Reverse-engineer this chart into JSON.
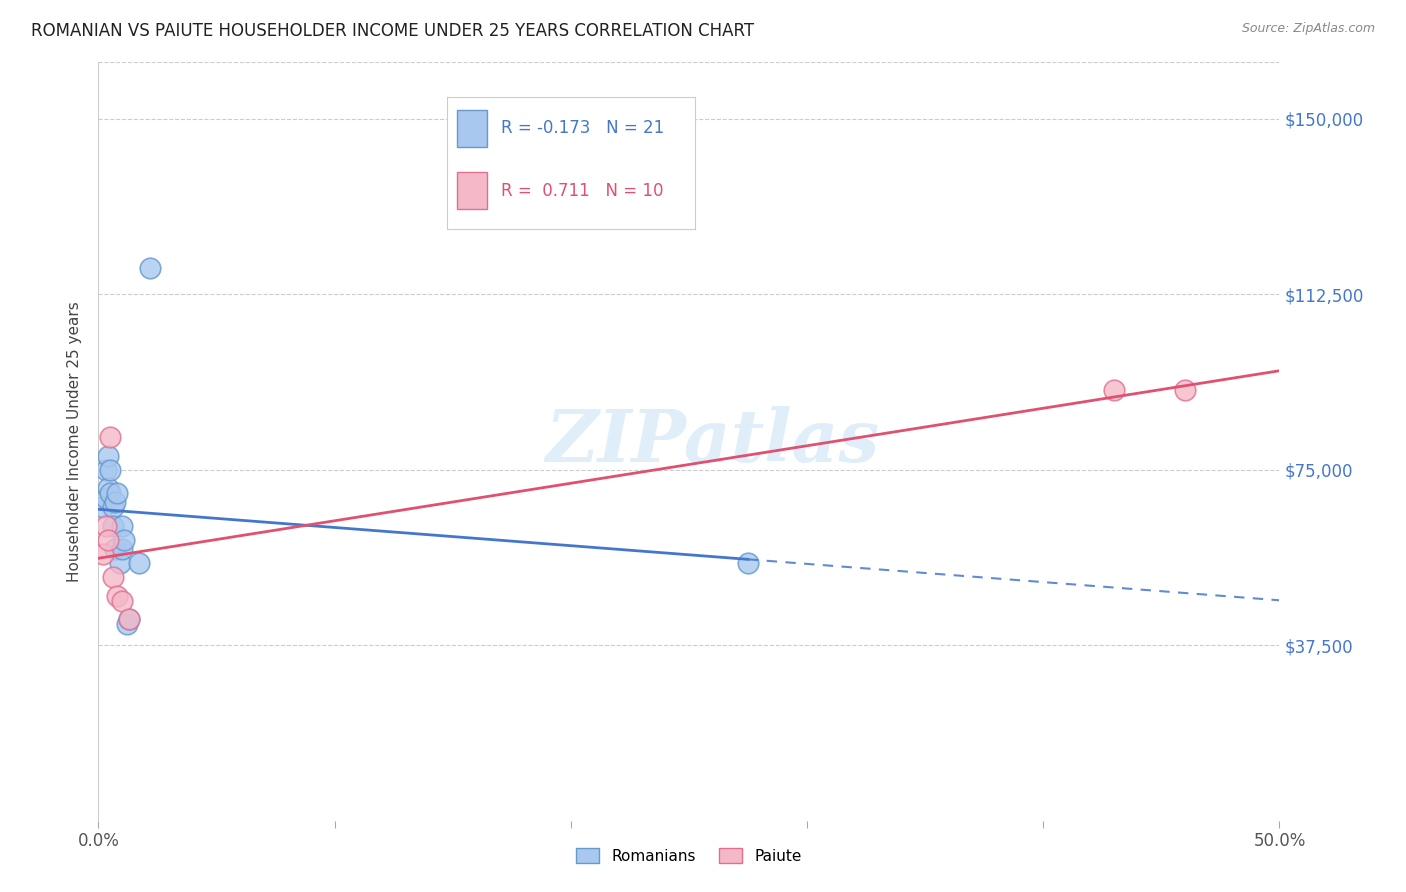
{
  "title": "ROMANIAN VS PAIUTE HOUSEHOLDER INCOME UNDER 25 YEARS CORRELATION CHART",
  "source": "Source: ZipAtlas.com",
  "ylabel": "Householder Income Under 25 years",
  "xlim": [
    0.0,
    0.5
  ],
  "ylim": [
    0,
    162000
  ],
  "yticks": [
    0,
    37500,
    75000,
    112500,
    150000
  ],
  "ytick_labels": [
    "",
    "$37,500",
    "$75,000",
    "$112,500",
    "$150,000"
  ],
  "xticks": [
    0.0,
    0.1,
    0.2,
    0.3,
    0.4,
    0.5
  ],
  "xtick_labels": [
    "0.0%",
    "",
    "",
    "",
    "",
    "50.0%"
  ],
  "watermark": "ZIPatlas",
  "romanians": {
    "x": [
      0.002,
      0.003,
      0.003,
      0.004,
      0.004,
      0.005,
      0.005,
      0.006,
      0.006,
      0.007,
      0.007,
      0.008,
      0.009,
      0.01,
      0.01,
      0.011,
      0.012,
      0.013,
      0.017,
      0.022,
      0.275
    ],
    "y": [
      67000,
      75000,
      69000,
      78000,
      71000,
      75000,
      70000,
      67000,
      63000,
      68000,
      58000,
      70000,
      55000,
      63000,
      58000,
      60000,
      42000,
      43000,
      55000,
      118000,
      55000
    ],
    "color": "#a8c8f0",
    "edge_color": "#6699cc",
    "R": -0.173,
    "N": 21,
    "label": "Romanians"
  },
  "paiute": {
    "x": [
      0.002,
      0.003,
      0.004,
      0.005,
      0.006,
      0.008,
      0.01,
      0.013,
      0.43,
      0.46
    ],
    "y": [
      57000,
      63000,
      60000,
      82000,
      52000,
      48000,
      47000,
      43000,
      92000,
      92000
    ],
    "color": "#f5b8c8",
    "edge_color": "#e07090",
    "R": 0.711,
    "N": 10,
    "label": "Paiute"
  },
  "blue_line_color": "#4477cc",
  "pink_line_color": "#e05070",
  "background_color": "#ffffff",
  "grid_color": "#cccccc",
  "blue_line_solid_end": 0.275,
  "blue_line_dash_start": 0.275,
  "blue_line_end": 0.5
}
